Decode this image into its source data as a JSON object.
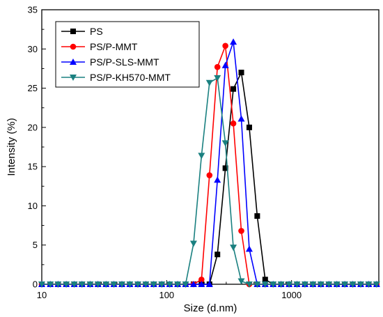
{
  "chart_data": {
    "type": "line",
    "title": "",
    "xlabel": "Size (d.nm)",
    "ylabel": "Intensity (%)",
    "x_scale": "log",
    "xlim": [
      10,
      5000
    ],
    "ylim": [
      0,
      35
    ],
    "x_ticks": [
      10,
      100,
      1000
    ],
    "y_ticks": [
      0,
      5,
      10,
      15,
      20,
      25,
      30,
      35
    ],
    "grid": false,
    "legend_position": "top-left",
    "x": [
      10,
      11.7,
      13.5,
      15.7,
      18.2,
      21.0,
      24.4,
      28.2,
      32.7,
      37.8,
      43.8,
      50.7,
      58.8,
      68.1,
      78.8,
      91.3,
      105.7,
      122.4,
      141.8,
      164.2,
      190.1,
      220.2,
      255.0,
      295.3,
      342.0,
      396.1,
      458.7,
      531.2,
      615.1,
      712.4,
      825.0,
      955.4,
      1106,
      1281,
      1484,
      1718,
      1990,
      2305,
      2669,
      3091,
      3580,
      4145,
      4800
    ],
    "series": [
      {
        "name": "PS",
        "color": "#000000",
        "marker": "square",
        "values": [
          0,
          0,
          0,
          0,
          0,
          0,
          0,
          0,
          0,
          0,
          0,
          0,
          0,
          0,
          0,
          0,
          0,
          0,
          0,
          0,
          0,
          0,
          3.8,
          14.8,
          24.9,
          27.0,
          20.0,
          8.7,
          0.6,
          0,
          0,
          0,
          0,
          0,
          0,
          0,
          0,
          0,
          0,
          0,
          0,
          0,
          0
        ]
      },
      {
        "name": "PS/P-MMT",
        "color": "#ff0000",
        "marker": "circle",
        "values": [
          0,
          0,
          0,
          0,
          0,
          0,
          0,
          0,
          0,
          0,
          0,
          0,
          0,
          0,
          0,
          0,
          0,
          0,
          0,
          0,
          0.6,
          13.9,
          27.7,
          30.4,
          20.5,
          6.8,
          0,
          0,
          0,
          0,
          0,
          0,
          0,
          0,
          0,
          0,
          0,
          0,
          0,
          0,
          0,
          0,
          0
        ]
      },
      {
        "name": "PS/P-SLS-MMT",
        "color": "#0000ff",
        "marker": "triangle-up",
        "values": [
          0,
          0,
          0,
          0,
          0,
          0,
          0,
          0,
          0,
          0,
          0,
          0,
          0,
          0,
          0,
          0,
          0,
          0,
          0,
          0,
          0,
          0,
          13.3,
          27.9,
          30.9,
          21.1,
          4.5,
          0,
          0,
          0,
          0,
          0,
          0,
          0,
          0,
          0,
          0,
          0,
          0,
          0,
          0,
          0,
          0
        ]
      },
      {
        "name": "PS/P-KH570-MMT",
        "color": "#1a8080",
        "marker": "triangle-down",
        "values": [
          0,
          0,
          0,
          0,
          0,
          0,
          0,
          0,
          0,
          0,
          0,
          0,
          0,
          0,
          0,
          0,
          0,
          0,
          0,
          5.2,
          16.4,
          25.7,
          26.3,
          18.0,
          4.7,
          0.4,
          0,
          0,
          0,
          0,
          0,
          0,
          0,
          0,
          0,
          0,
          0,
          0,
          0,
          0,
          0,
          0,
          0
        ]
      }
    ]
  }
}
